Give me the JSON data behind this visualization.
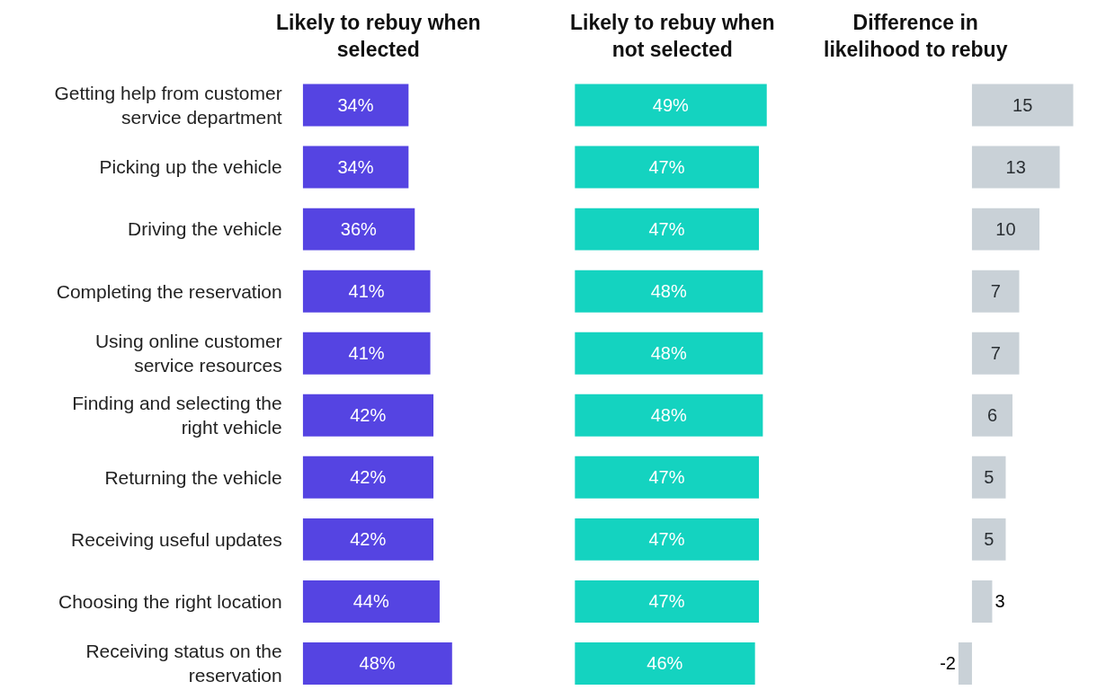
{
  "chart_data": [
    {
      "type": "bar",
      "orientation": "horizontal",
      "title": "Likely to rebuy when selected",
      "tick_labels": "y",
      "color": "#5544e2",
      "categories": [
        "Getting help from customer service department",
        "Picking up the vehicle",
        "Driving the vehicle",
        "Completing the reservation",
        "Using online customer service resources",
        "Finding and selecting the right vehicle",
        "Returning the vehicle",
        "Receiving useful updates",
        "Choosing the right location",
        "Receiving status on the reservation"
      ],
      "values": [
        34,
        34,
        36,
        41,
        41,
        42,
        42,
        42,
        44,
        48
      ],
      "value_labels": [
        "34%",
        "34%",
        "36%",
        "41%",
        "41%",
        "42%",
        "42%",
        "42%",
        "44%",
        "48%"
      ]
    },
    {
      "type": "bar",
      "orientation": "horizontal",
      "title": "Likely to rebuy when not selected",
      "tick_labels": false,
      "color": "#14d3c0",
      "categories": [
        "Getting help from customer service department",
        "Picking up the vehicle",
        "Driving the vehicle",
        "Completing the reservation",
        "Using online customer service resources",
        "Finding and selecting the right vehicle",
        "Returning the vehicle",
        "Receiving useful updates",
        "Choosing the right location",
        "Receiving status on the reservation"
      ],
      "values": [
        49,
        47,
        47,
        48,
        48,
        48,
        47,
        47,
        47,
        46
      ],
      "value_labels": [
        "49%",
        "47%",
        "47%",
        "48%",
        "48%",
        "48%",
        "47%",
        "47%",
        "47%",
        "46%"
      ]
    },
    {
      "type": "bar",
      "orientation": "horizontal",
      "title": "Difference in likelihood to rebuy",
      "tick_labels": false,
      "color": "#c9d1d7",
      "data_labels": true,
      "categories": [
        "Getting help from customer service department",
        "Picking up the vehicle",
        "Driving the vehicle",
        "Completing the reservation",
        "Using online customer service resources",
        "Finding and selecting the right vehicle",
        "Returning the vehicle",
        "Receiving useful updates",
        "Choosing the right location",
        "Receiving status on the reservation"
      ],
      "values": [
        15,
        13,
        10,
        7,
        7,
        6,
        5,
        5,
        3,
        -2
      ]
    }
  ]
}
